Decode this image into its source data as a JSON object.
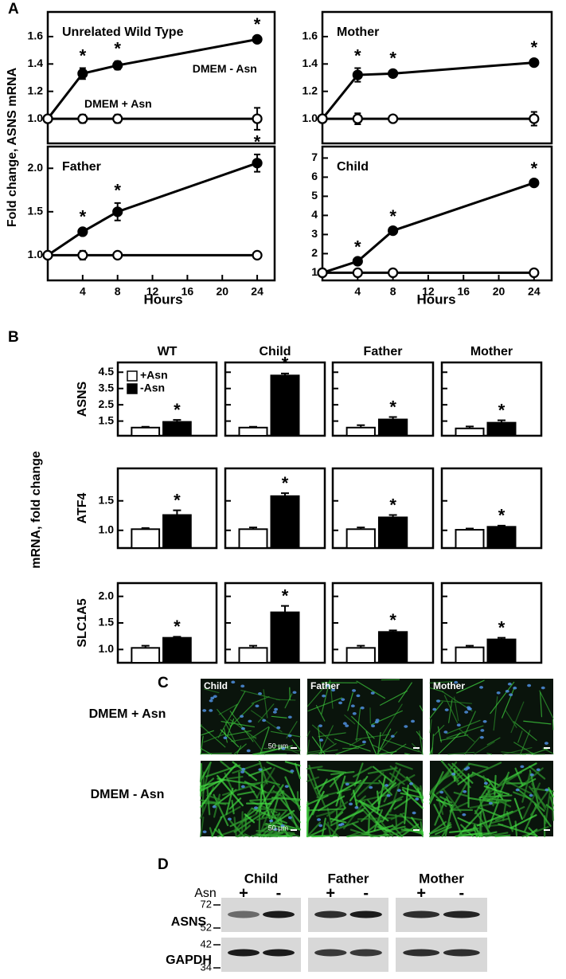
{
  "panel_a": {
    "label": "A",
    "y_label": "Fold change, ASNS mRNA",
    "x_label": "Hours"
  },
  "panel_b": {
    "label": "B",
    "y_label": "mRNA, fold change"
  },
  "panel_c": {
    "label": "C",
    "columns": [
      "Child",
      "Father",
      "Mother"
    ],
    "rows": [
      "DMEM + Asn",
      "DMEM - Asn"
    ],
    "scale_bar": "50 µm"
  },
  "panel_d": {
    "label": "D",
    "groups": [
      "Child",
      "Father",
      "Mother"
    ],
    "treatment": "Asn",
    "lanes": [
      "+",
      "-"
    ],
    "blots": [
      {
        "name": "ASNS",
        "markers": [
          72,
          52
        ]
      },
      {
        "name": "GAPDH",
        "markers": [
          42,
          34
        ]
      }
    ]
  },
  "chart_data": [
    {
      "type": "line",
      "title": "Unrelated Wild Type",
      "x": [
        0,
        4,
        8,
        24
      ],
      "xlim": [
        0,
        26
      ],
      "ylim": [
        0.82,
        1.78
      ],
      "yticks": [
        {
          "value": 1.0,
          "label": "1.0"
        },
        1.2,
        1.4,
        1.6
      ],
      "series": [
        {
          "name": "DMEM - Asn",
          "marker": "filled",
          "color": "#000000",
          "values": [
            1.0,
            1.33,
            1.39,
            1.58
          ],
          "errors": [
            0,
            0.04,
            0.03,
            0.02
          ],
          "significance": [
            null,
            "*",
            "*",
            "*"
          ]
        },
        {
          "name": "DMEM + Asn",
          "marker": "open",
          "color": "#000000",
          "values": [
            1.0,
            1.0,
            1.0,
            1.0
          ],
          "errors": [
            0,
            0.03,
            0.03,
            0.08
          ],
          "significance": [
            null,
            null,
            null,
            null
          ]
        }
      ]
    },
    {
      "type": "line",
      "title": "Mother",
      "x": [
        0,
        4,
        8,
        24
      ],
      "xlim": [
        0,
        26
      ],
      "ylim": [
        0.82,
        1.78
      ],
      "yticks": [
        {
          "value": 1.0,
          "label": "1.0"
        },
        1.2,
        1.4,
        1.6
      ],
      "series": [
        {
          "marker": "filled",
          "color": "#000000",
          "values": [
            1.0,
            1.32,
            1.33,
            1.41
          ],
          "errors": [
            0,
            0.05,
            0.02,
            0.02
          ],
          "significance": [
            null,
            "*",
            "*",
            "*"
          ]
        },
        {
          "marker": "open",
          "color": "#000000",
          "values": [
            1.0,
            1.0,
            1.0,
            1.0
          ],
          "errors": [
            0,
            0.04,
            0.02,
            0.05
          ],
          "significance": [
            null,
            null,
            null,
            null
          ]
        }
      ]
    },
    {
      "type": "line",
      "title": "Father",
      "x": [
        0,
        4,
        8,
        24
      ],
      "xlim": [
        0,
        26
      ],
      "ylim": [
        0.71,
        2.25
      ],
      "xticks": [
        4,
        8,
        12,
        16,
        20,
        24
      ],
      "yticks": [
        {
          "value": 1.0,
          "label": "1.0"
        },
        1.5,
        {
          "value": 2.0,
          "label": "2.0"
        }
      ],
      "series": [
        {
          "marker": "filled",
          "color": "#000000",
          "values": [
            1.0,
            1.27,
            1.5,
            2.06
          ],
          "errors": [
            0,
            0.03,
            0.1,
            0.1
          ],
          "significance": [
            null,
            "*",
            "*",
            "*"
          ]
        },
        {
          "marker": "open",
          "color": "#000000",
          "values": [
            1.0,
            1.0,
            1.0,
            1.0
          ],
          "errors": [
            0,
            0.05,
            0.02,
            0.02
          ],
          "significance": [
            null,
            null,
            null,
            null
          ]
        }
      ]
    },
    {
      "type": "line",
      "title": "Child",
      "x": [
        0,
        4,
        8,
        24
      ],
      "xlim": [
        0,
        26
      ],
      "ylim": [
        0.6,
        7.6
      ],
      "xticks": [
        4,
        8,
        12,
        16,
        20,
        24
      ],
      "yticks": [
        1,
        2,
        3,
        4,
        5,
        6,
        7
      ],
      "series": [
        {
          "marker": "filled",
          "color": "#000000",
          "values": [
            1.0,
            1.6,
            3.2,
            5.7
          ],
          "errors": [
            0,
            0.1,
            0.1,
            0.1
          ],
          "significance": [
            null,
            "*",
            "*",
            "*"
          ]
        },
        {
          "marker": "open",
          "color": "#000000",
          "values": [
            1.0,
            1.0,
            1.0,
            1.0
          ],
          "errors": [
            0,
            0.05,
            0.05,
            0.05
          ],
          "significance": [
            null,
            null,
            null,
            null
          ]
        }
      ]
    },
    {
      "type": "bar",
      "title": "WT",
      "ylabel": "ASNS",
      "ylim": [
        0.6,
        5.1
      ],
      "yticks": [
        1.5,
        2.5,
        3.5,
        4.5
      ],
      "series": [
        {
          "name": "+Asn",
          "color": "#ffffff",
          "values": [
            1.1
          ],
          "errors": [
            0.05
          ]
        },
        {
          "name": "-Asn",
          "color": "#000000",
          "values": [
            1.45
          ],
          "errors": [
            0.12
          ],
          "significance": [
            "*"
          ]
        }
      ]
    },
    {
      "type": "bar",
      "title": "Child",
      "ylim": [
        0.6,
        5.1
      ],
      "series": [
        {
          "color": "#ffffff",
          "values": [
            1.1
          ],
          "errors": [
            0.05
          ]
        },
        {
          "color": "#000000",
          "values": [
            4.3
          ],
          "errors": [
            0.12
          ],
          "significance": [
            "*"
          ]
        }
      ]
    },
    {
      "type": "bar",
      "title": "Father",
      "ylim": [
        0.6,
        5.1
      ],
      "series": [
        {
          "color": "#ffffff",
          "values": [
            1.1
          ],
          "errors": [
            0.15
          ]
        },
        {
          "color": "#000000",
          "values": [
            1.6
          ],
          "errors": [
            0.15
          ],
          "significance": [
            "*"
          ]
        }
      ]
    },
    {
      "type": "bar",
      "title": "Mother",
      "ylim": [
        0.6,
        5.1
      ],
      "series": [
        {
          "color": "#ffffff",
          "values": [
            1.05
          ],
          "errors": [
            0.12
          ]
        },
        {
          "color": "#000000",
          "values": [
            1.4
          ],
          "errors": [
            0.15
          ],
          "significance": [
            "*"
          ]
        }
      ]
    },
    {
      "type": "bar",
      "ylabel": "ATF4",
      "ylim": [
        0.7,
        2.05
      ],
      "yticks": [
        {
          "value": 1.0,
          "label": "1.0"
        },
        1.5
      ],
      "series": [
        {
          "color": "#ffffff",
          "values": [
            1.02
          ],
          "errors": [
            0.02
          ]
        },
        {
          "color": "#000000",
          "values": [
            1.26
          ],
          "errors": [
            0.08
          ],
          "significance": [
            "*"
          ]
        }
      ]
    },
    {
      "type": "bar",
      "ylim": [
        0.7,
        2.05
      ],
      "series": [
        {
          "color": "#ffffff",
          "values": [
            1.02
          ],
          "errors": [
            0.03
          ]
        },
        {
          "color": "#000000",
          "values": [
            1.58
          ],
          "errors": [
            0.05
          ],
          "significance": [
            "*"
          ]
        }
      ]
    },
    {
      "type": "bar",
      "ylim": [
        0.7,
        2.05
      ],
      "series": [
        {
          "color": "#ffffff",
          "values": [
            1.02
          ],
          "errors": [
            0.03
          ]
        },
        {
          "color": "#000000",
          "values": [
            1.22
          ],
          "errors": [
            0.04
          ],
          "significance": [
            "*"
          ]
        }
      ]
    },
    {
      "type": "bar",
      "ylim": [
        0.7,
        2.05
      ],
      "series": [
        {
          "color": "#ffffff",
          "values": [
            1.01
          ],
          "errors": [
            0.02
          ]
        },
        {
          "color": "#000000",
          "values": [
            1.06
          ],
          "errors": [
            0.02
          ],
          "significance": [
            "*"
          ]
        }
      ]
    },
    {
      "type": "bar",
      "ylabel": "SLC1A5",
      "ylim": [
        0.75,
        2.25
      ],
      "yticks": [
        {
          "value": 1.0,
          "label": "1.0"
        },
        1.5,
        {
          "value": 2.0,
          "label": "2.0"
        }
      ],
      "series": [
        {
          "color": "#ffffff",
          "values": [
            1.03
          ],
          "errors": [
            0.04
          ]
        },
        {
          "color": "#000000",
          "values": [
            1.22
          ],
          "errors": [
            0.02
          ],
          "significance": [
            "*"
          ]
        }
      ]
    },
    {
      "type": "bar",
      "ylim": [
        0.75,
        2.25
      ],
      "series": [
        {
          "color": "#ffffff",
          "values": [
            1.03
          ],
          "errors": [
            0.04
          ]
        },
        {
          "color": "#000000",
          "values": [
            1.7
          ],
          "errors": [
            0.12
          ],
          "significance": [
            "*"
          ]
        }
      ]
    },
    {
      "type": "bar",
      "ylim": [
        0.75,
        2.25
      ],
      "series": [
        {
          "color": "#ffffff",
          "values": [
            1.03
          ],
          "errors": [
            0.04
          ]
        },
        {
          "color": "#000000",
          "values": [
            1.33
          ],
          "errors": [
            0.03
          ],
          "significance": [
            "*"
          ]
        }
      ]
    },
    {
      "type": "bar",
      "ylim": [
        0.75,
        2.25
      ],
      "series": [
        {
          "color": "#ffffff",
          "values": [
            1.04
          ],
          "errors": [
            0.03
          ]
        },
        {
          "color": "#000000",
          "values": [
            1.19
          ],
          "errors": [
            0.03
          ],
          "significance": [
            "*"
          ]
        }
      ]
    }
  ]
}
